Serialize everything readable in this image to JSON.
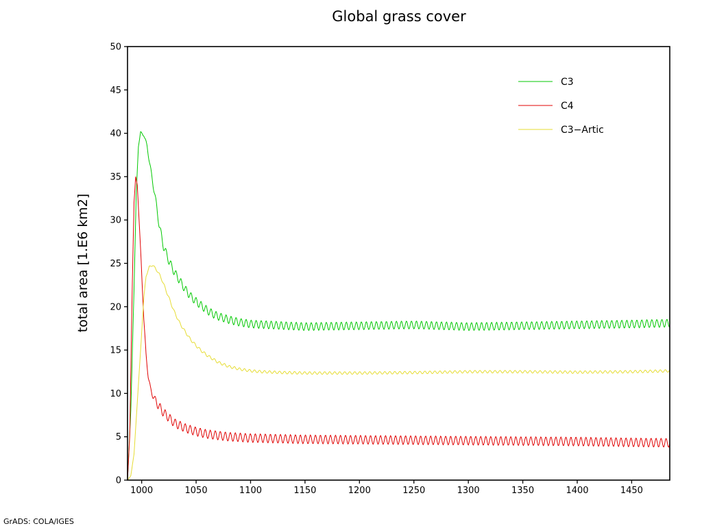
{
  "footer": {
    "credit": "GrADS: COLA/IGES"
  },
  "chart_data": {
    "type": "line",
    "title": "Global grass cover",
    "xlabel": "",
    "ylabel": "total area [1.E6 km2]",
    "xlim": [
      987,
      1485
    ],
    "ylim": [
      0,
      50
    ],
    "xticks": [
      1000,
      1050,
      1100,
      1150,
      1200,
      1250,
      1300,
      1350,
      1400,
      1450
    ],
    "yticks": [
      0,
      5,
      10,
      15,
      20,
      25,
      30,
      35,
      40,
      45,
      50
    ],
    "grid": false,
    "legend_position": "top-right",
    "series": [
      {
        "name": "C3",
        "color": "#00c800",
        "points": [
          [
            987,
            0
          ],
          [
            990,
            8
          ],
          [
            993,
            22
          ],
          [
            995,
            33
          ],
          [
            997,
            38.5
          ],
          [
            999,
            40.1
          ],
          [
            1002,
            39.8
          ],
          [
            1005,
            38.5
          ],
          [
            1008,
            36
          ],
          [
            1012,
            33
          ],
          [
            1016,
            29.5
          ],
          [
            1020,
            27
          ],
          [
            1025,
            25.3
          ],
          [
            1030,
            24
          ],
          [
            1035,
            23
          ],
          [
            1040,
            22
          ],
          [
            1045,
            21.2
          ],
          [
            1050,
            20.6
          ],
          [
            1055,
            20.1
          ],
          [
            1060,
            19.6
          ],
          [
            1065,
            19.2
          ],
          [
            1070,
            18.9
          ],
          [
            1080,
            18.5
          ],
          [
            1090,
            18.2
          ],
          [
            1100,
            18
          ],
          [
            1150,
            17.7
          ],
          [
            1200,
            17.8
          ],
          [
            1250,
            17.9
          ],
          [
            1300,
            17.7
          ],
          [
            1350,
            17.8
          ],
          [
            1400,
            17.9
          ],
          [
            1450,
            18
          ],
          [
            1485,
            18.1
          ]
        ],
        "oscillation": {
          "period": 4.6,
          "amplitude": 0.45
        }
      },
      {
        "name": "C4",
        "color": "#e00000",
        "points": [
          [
            987,
            0
          ],
          [
            989,
            5
          ],
          [
            991,
            20
          ],
          [
            993,
            32
          ],
          [
            994.5,
            35
          ],
          [
            996,
            34
          ],
          [
            998,
            29
          ],
          [
            1000,
            24
          ],
          [
            1002,
            18.5
          ],
          [
            1004,
            14.5
          ],
          [
            1006,
            12
          ],
          [
            1008,
            10.5
          ],
          [
            1012,
            9.3
          ],
          [
            1016,
            8.5
          ],
          [
            1020,
            7.8
          ],
          [
            1025,
            7.2
          ],
          [
            1030,
            6.6
          ],
          [
            1040,
            6
          ],
          [
            1050,
            5.6
          ],
          [
            1060,
            5.3
          ],
          [
            1080,
            5
          ],
          [
            1100,
            4.85
          ],
          [
            1150,
            4.7
          ],
          [
            1200,
            4.65
          ],
          [
            1250,
            4.6
          ],
          [
            1300,
            4.55
          ],
          [
            1350,
            4.5
          ],
          [
            1400,
            4.45
          ],
          [
            1450,
            4.35
          ],
          [
            1485,
            4.3
          ]
        ],
        "oscillation": {
          "period": 4.6,
          "amplitude": 0.5
        }
      },
      {
        "name": "C3−Artic",
        "color": "#e6dc32",
        "points": [
          [
            987,
            0
          ],
          [
            990,
            0.5
          ],
          [
            993,
            3
          ],
          [
            996,
            9
          ],
          [
            999,
            15
          ],
          [
            1002,
            21
          ],
          [
            1004,
            23.5
          ],
          [
            1007,
            24.6
          ],
          [
            1010,
            24.8
          ],
          [
            1014,
            24.2
          ],
          [
            1018,
            23.3
          ],
          [
            1022,
            22
          ],
          [
            1026,
            20.7
          ],
          [
            1030,
            19.4
          ],
          [
            1035,
            18.1
          ],
          [
            1040,
            17.1
          ],
          [
            1045,
            16.2
          ],
          [
            1050,
            15.5
          ],
          [
            1055,
            14.9
          ],
          [
            1060,
            14.4
          ],
          [
            1065,
            14
          ],
          [
            1070,
            13.6
          ],
          [
            1080,
            13.1
          ],
          [
            1090,
            12.8
          ],
          [
            1100,
            12.6
          ],
          [
            1110,
            12.5
          ],
          [
            1130,
            12.4
          ],
          [
            1150,
            12.35
          ],
          [
            1200,
            12.35
          ],
          [
            1250,
            12.4
          ],
          [
            1300,
            12.5
          ],
          [
            1350,
            12.5
          ],
          [
            1400,
            12.45
          ],
          [
            1450,
            12.5
          ],
          [
            1485,
            12.6
          ]
        ],
        "oscillation": {
          "period": 4.6,
          "amplitude": 0.15
        }
      }
    ]
  }
}
